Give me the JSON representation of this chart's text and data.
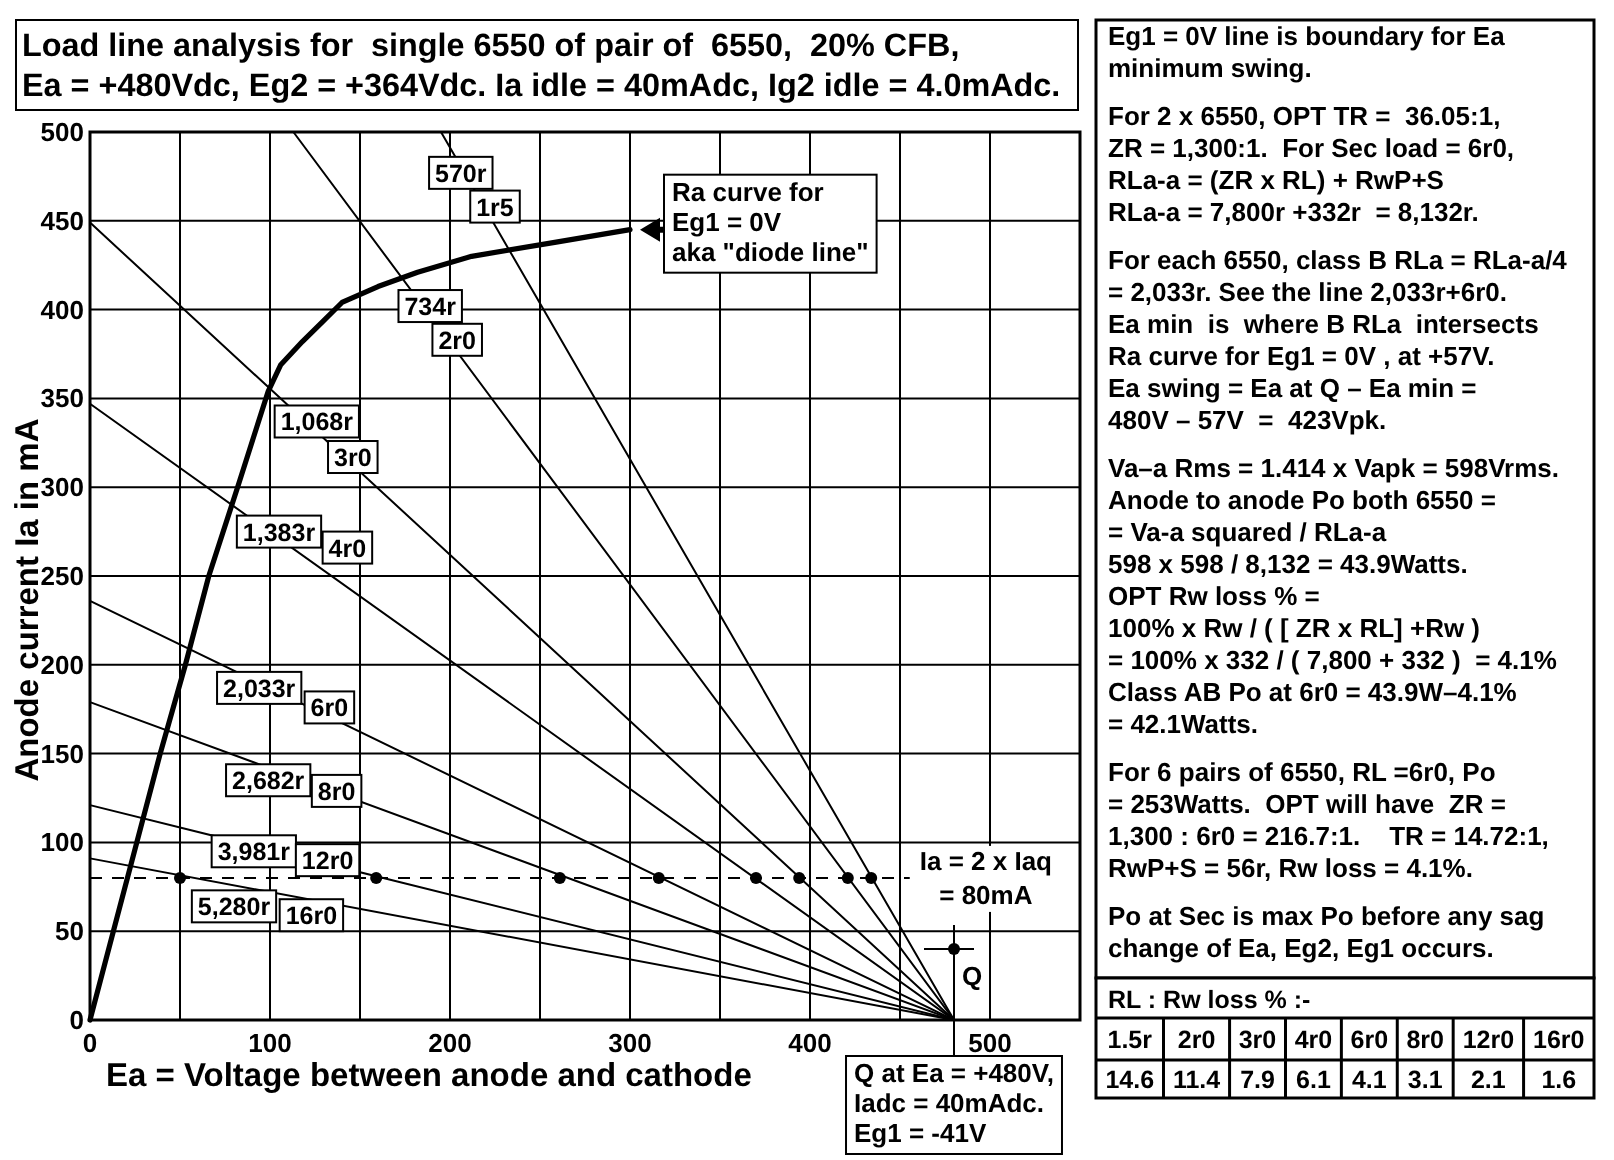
{
  "chart_data": [
    {
      "type": "line",
      "title": "Load line analysis for  single 6550 of pair of  6550,  20% CFB,\nEa = +480Vdc, Eg2 = +364Vdc. Ia idle = 40mAdc, Ig2 idle = 4.0mAdc.",
      "xlabel": "Ea = Voltage between anode and cathode",
      "ylabel": "Anode current Ia in mA",
      "xlim": [
        0,
        550
      ],
      "ylim": [
        0,
        500
      ],
      "xticks": [
        0,
        {
          "value": 50,
          "label": null
        },
        100,
        {
          "value": 150,
          "label": null
        },
        200,
        {
          "value": 250,
          "label": null
        },
        300,
        {
          "value": 350,
          "label": null
        },
        400,
        {
          "value": 450,
          "label": null
        },
        500
      ],
      "yticks": [
        0,
        50,
        100,
        150,
        200,
        250,
        300,
        350,
        400,
        450,
        500
      ],
      "grid": true,
      "series": [
        {
          "type": "line",
          "color": "#000000",
          "x": [
            0,
            13,
            26,
            39,
            53,
            66,
            82,
            99,
            106,
            118,
            129,
            140,
            160,
            182,
            212,
            259,
            300
          ],
          "values": [
            0,
            50,
            100,
            150,
            200,
            250,
            300,
            354,
            369,
            382,
            393,
            404,
            413,
            421,
            430,
            438,
            445
          ]
        },
        {
          "type": "line",
          "color": "#000000",
          "x": [
            195,
            480
          ],
          "values": [
            500,
            0
          ]
        },
        {
          "type": "line",
          "color": "#000000",
          "x": [
            113,
            480
          ],
          "values": [
            500,
            0
          ]
        },
        {
          "type": "line",
          "color": "#000000",
          "x": [
            0,
            480
          ],
          "values": [
            449,
            0
          ]
        },
        {
          "type": "line",
          "color": "#000000",
          "x": [
            0,
            480
          ],
          "values": [
            347,
            0
          ]
        },
        {
          "type": "line",
          "color": "#000000",
          "x": [
            0,
            480
          ],
          "values": [
            236,
            0
          ]
        },
        {
          "type": "line",
          "color": "#000000",
          "x": [
            0,
            480
          ],
          "values": [
            179,
            0
          ]
        },
        {
          "type": "line",
          "color": "#000000",
          "x": [
            0,
            480
          ],
          "values": [
            121,
            0
          ]
        },
        {
          "type": "line",
          "color": "#000000",
          "x": [
            0,
            480
          ],
          "values": [
            91,
            0
          ]
        },
        {
          "type": "scatter",
          "color": "#000000",
          "marker": "circle",
          "x": [
            50,
            159,
            261,
            316,
            370,
            394,
            421,
            434
          ],
          "values": [
            80,
            80,
            80,
            80,
            80,
            80,
            80,
            80
          ]
        },
        {
          "type": "scatter",
          "name": "Q",
          "color": "#000000",
          "marker": "circle",
          "x": [
            480
          ],
          "values": [
            40
          ]
        }
      ],
      "ref_lines": [
        {
          "axis": "y",
          "value": 80,
          "label": "Ia = 2 x Iaq\n= 80mA",
          "line_style": "dashed"
        }
      ],
      "annotations": [
        {
          "text": "570r",
          "x": 206,
          "y": 477
        },
        {
          "text": "1r5",
          "x": 225,
          "y": 458
        },
        {
          "text": "734r",
          "x": 189,
          "y": 402
        },
        {
          "text": "2r0",
          "x": 204,
          "y": 383
        },
        {
          "text": "1,068r",
          "x": 126,
          "y": 337
        },
        {
          "text": "3r0",
          "x": 146,
          "y": 317
        },
        {
          "text": "1,383r",
          "x": 105,
          "y": 275
        },
        {
          "text": "4r0",
          "x": 143,
          "y": 266
        },
        {
          "text": "2,033r",
          "x": 94,
          "y": 187
        },
        {
          "text": "6r0",
          "x": 133,
          "y": 176
        },
        {
          "text": "2,682r",
          "x": 99,
          "y": 135
        },
        {
          "text": "8r0",
          "x": 137,
          "y": 129
        },
        {
          "text": "3,981r",
          "x": 91,
          "y": 95
        },
        {
          "text": "12r0",
          "x": 132,
          "y": 90
        },
        {
          "text": "5,280r",
          "x": 80,
          "y": 64
        },
        {
          "text": "16r0",
          "x": 123,
          "y": 59
        },
        {
          "text": "Ra curve for\nEg1 = 0V\naka \"diode line\"",
          "x": 300,
          "y": 445
        },
        {
          "text": "Q at Ea = +480V,\nIadc = 40mAdc.\nEg1 = -41V",
          "x": 480,
          "y": 40
        }
      ]
    },
    {
      "type": "other",
      "annotations": [
        "Eg1 = 0V line is boundary for Ea\nminimum swing.",
        "For 2 x 6550, OPT TR =  36.05:1,\nZR = 1,300:1.  For Sec load = 6r0,\nRLa-a = (ZR x RL) + RwP+S\nRLa-a = 7,800r +332r  = 8,132r.",
        "For each 6550, class B RLa = RLa-a/4\n= 2,033r. See the line 2,033r+6r0.\nEa min  is  where B RLa  intersects\nRa curve for Eg1 = 0V , at +57V.\nEa swing = Ea at Q – Ea min =\n480V – 57V  =  423Vpk.",
        "Va–a Rms = 1.414 x Vapk = 598Vrms.\nAnode to anode Po both 6550 =\n= Va-a squared / RLa-a\n598 x 598 / 8,132 = 43.9Watts.\nOPT Rw loss % =\n100% x Rw / ( [ ZR x RL] +Rw )\n= 100% x 332 / ( 7,800 + 332 )  = 4.1%\nClass AB Po at 6r0 = 43.9W–4.1%\n= 42.1Watts.",
        "For 6 pairs of 6550, RL =6r0, Po\n= 253Watts.  OPT will have  ZR =\n1,300 : 6r0 = 216.7:1.    TR = 14.72:1,\nRwP+S = 56r, Rw loss = 4.1%.",
        "Po at Sec is max Po before any sag\nchange of Ea, Eg2, Eg1 occurs."
      ]
    },
    {
      "type": "other",
      "title": "RL : Rw loss % :-",
      "categories": [
        "1.5r",
        "2r0",
        "3r0",
        "4r0",
        "6r0",
        "8r0",
        "12r0",
        "16r0"
      ],
      "values": [
        14.6,
        11.4,
        7.9,
        6.1,
        4.1,
        3.1,
        2.1,
        1.6
      ],
      "data_labels": true
    }
  ]
}
